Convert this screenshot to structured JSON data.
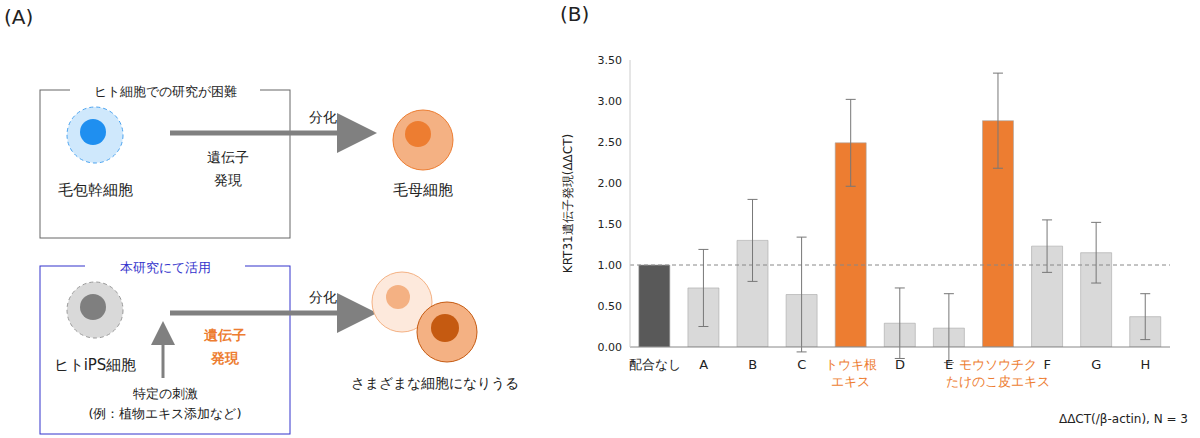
{
  "diagram": {
    "label": "(A)",
    "top_box": {
      "title": "ヒト細胞での研究が困難",
      "source": "毛包幹細胞",
      "arrow_label": "遺伝子\n発現",
      "action": "分化",
      "target": "毛母細胞"
    },
    "bottom_box": {
      "title": "本研究にて活用",
      "source": "ヒトiPS細胞",
      "arrow_label": "遺伝子\n発現",
      "action": "分化",
      "stimulus": "特定の刺激\n(例：植物エキス添加など)",
      "target": "さまざまな細胞になりうる"
    }
  },
  "chart_data": {
    "type": "bar",
    "panel_label": "(B)",
    "ylabel": "KRT31遺伝子発現(ΔΔCT)",
    "note": "ΔΔCT(/β-actin), N = 3",
    "categories": [
      "配合なし",
      "A",
      "B",
      "C",
      "トウキ根\nエキス",
      "D",
      "E",
      "モウソウチク\nたけのこ皮エキス",
      "F",
      "G",
      "H"
    ],
    "values": [
      1.0,
      0.72,
      1.3,
      0.64,
      2.49,
      0.29,
      0.23,
      2.76,
      1.23,
      1.15,
      0.37
    ],
    "errors": [
      null,
      0.47,
      0.5,
      0.7,
      0.53,
      0.43,
      0.42,
      0.58,
      0.32,
      0.37,
      0.28
    ],
    "colors": [
      "#595959",
      "#d9d9d9",
      "#d9d9d9",
      "#d9d9d9",
      "#ed7d31",
      "#d9d9d9",
      "#d9d9d9",
      "#ed7d31",
      "#d9d9d9",
      "#d9d9d9",
      "#d9d9d9"
    ],
    "reference_line": 1,
    "ylim": [
      0,
      3.5
    ],
    "yticks": [
      {
        "value": 0,
        "label": "0.00"
      },
      {
        "value": 0.5,
        "label": "0.50"
      },
      {
        "value": 1,
        "label": "1.00"
      },
      {
        "value": 1.5,
        "label": "1.50"
      },
      {
        "value": 2,
        "label": "2.00"
      },
      {
        "value": 2.5,
        "label": "2.50"
      },
      {
        "value": 3,
        "label": "3.00"
      },
      {
        "value": 3.5,
        "label": "3.50"
      }
    ],
    "grid": false
  }
}
